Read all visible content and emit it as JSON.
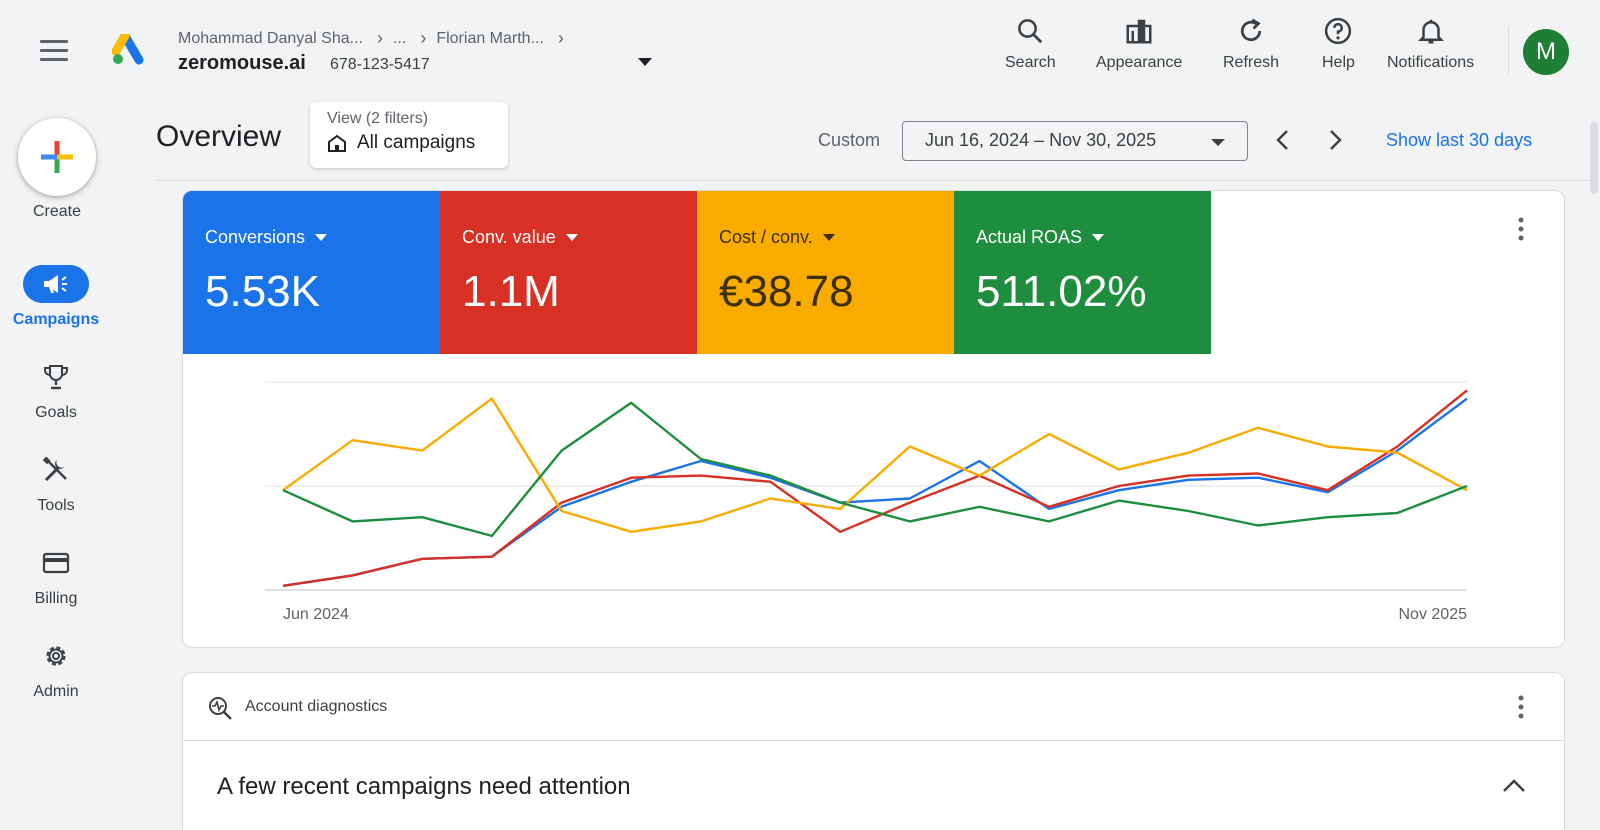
{
  "header": {
    "breadcrumbs": [
      "Mohammad Danyal Sha...",
      "...",
      "Florian Marth..."
    ],
    "account_name": "zeromouse.ai",
    "account_id": "678-123-5417",
    "tools": {
      "search": "Search",
      "appearance": "Appearance",
      "refresh": "Refresh",
      "help": "Help",
      "notifications": "Notifications"
    },
    "avatar_initial": "M"
  },
  "sidebar": {
    "create_label": "Create",
    "items": [
      {
        "label": "Campaigns",
        "icon": "megaphone-icon",
        "active": true
      },
      {
        "label": "Goals",
        "icon": "trophy-icon"
      },
      {
        "label": "Tools",
        "icon": "tools-icon"
      },
      {
        "label": "Billing",
        "icon": "credit-card-icon"
      },
      {
        "label": "Admin",
        "icon": "gear-icon"
      }
    ]
  },
  "overview": {
    "title": "Overview",
    "view_filter_label": "View (2 filters)",
    "view_filter_value": "All campaigns",
    "custom_label": "Custom",
    "date_range": "Jun 16, 2024 – Nov 30, 2025",
    "show_last": "Show last 30 days"
  },
  "metrics": [
    {
      "label": "Conversions",
      "value": "5.53K",
      "color": "#1a73e8"
    },
    {
      "label": "Conv. value",
      "value": "1.1M",
      "color": "#d93025"
    },
    {
      "label": "Cost / conv.",
      "value": "€38.78",
      "color": "#f9ab00"
    },
    {
      "label": "Actual ROAS",
      "value": "511.02%",
      "color": "#1e8e3e"
    }
  ],
  "chart_data": {
    "type": "line",
    "x_labels": [
      "Jun 2024",
      "Nov 2025"
    ],
    "grid": true,
    "legend": "none",
    "y_axis_range": [
      0,
      100
    ],
    "series": [
      {
        "name": "Conversions",
        "color": "#1a73e8",
        "values": [
          2,
          7,
          15,
          16,
          40,
          52,
          62,
          54,
          42,
          44,
          62,
          39,
          48,
          53,
          54,
          47,
          67,
          92
        ]
      },
      {
        "name": "Conv. value",
        "color": "#d93025",
        "values": [
          2,
          7,
          15,
          16,
          42,
          54,
          55,
          52,
          28,
          42,
          55,
          40,
          50,
          55,
          56,
          48,
          69,
          96
        ]
      },
      {
        "name": "Cost / conv.",
        "color": "#f9ab00",
        "values": [
          48,
          72,
          67,
          92,
          38,
          28,
          33,
          44,
          39,
          69,
          55,
          75,
          58,
          66,
          78,
          69,
          66,
          48
        ]
      },
      {
        "name": "Actual ROAS",
        "color": "#1e8e3e",
        "values": [
          48,
          33,
          35,
          26,
          67,
          90,
          63,
          55,
          42,
          33,
          40,
          33,
          43,
          38,
          31,
          35,
          37,
          50
        ]
      }
    ]
  },
  "diagnostics": {
    "title": "Account diagnostics",
    "message": "A few recent campaigns need attention"
  }
}
